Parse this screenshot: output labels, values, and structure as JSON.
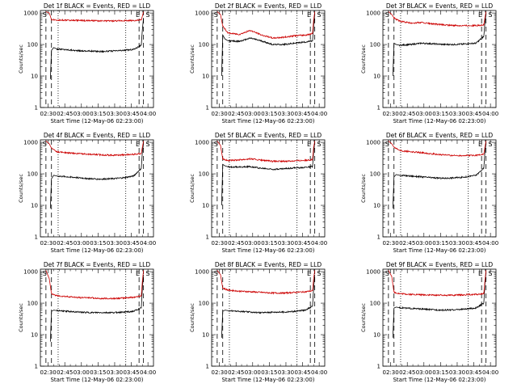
{
  "colors": {
    "events": "#000000",
    "lld": "#cc0000",
    "axis": "#000000",
    "background": "#ffffff"
  },
  "common": {
    "ylabel": "Counts/sec",
    "xlabel": "Start Time (12-May-06 02:23:00)",
    "xticks": [
      "02:30",
      "02:45",
      "03:00",
      "03:15",
      "03:30",
      "03:45",
      "04:00"
    ],
    "yticks": [
      "1",
      "10",
      "100",
      "1000"
    ],
    "marks": {
      "start": "S",
      "end": "E"
    }
  },
  "chart_data": [
    {
      "type": "line",
      "title": "Det 1f BLACK = Events, RED = LLD",
      "xlabel": "Start Time (12-May-06 02:23:00)",
      "ylabel": "Counts/sec",
      "yscale": "log",
      "ylim": [
        1,
        1200
      ],
      "xlim_minutes": [
        0,
        102
      ],
      "series": [
        {
          "name": "Events",
          "color": "#000000",
          "x": [
            9,
            10,
            12,
            15,
            25,
            35,
            45,
            55,
            65,
            75,
            84,
            91,
            92,
            93
          ],
          "y": [
            8,
            65,
            80,
            72,
            68,
            63,
            62,
            60,
            62,
            65,
            70,
            95,
            300,
            700
          ]
        },
        {
          "name": "LLD",
          "color": "#cc0000",
          "x": [
            5,
            8,
            10,
            15,
            25,
            35,
            45,
            55,
            65,
            75,
            85,
            91,
            92,
            93
          ],
          "y": [
            1100,
            1000,
            620,
            600,
            590,
            580,
            570,
            560,
            560,
            570,
            580,
            600,
            800,
            1100
          ]
        }
      ],
      "vlines_dashed_minutes": [
        5,
        10,
        89,
        93
      ],
      "vlines_dotted_minutes": [
        16,
        77
      ],
      "labels": [
        "S",
        "E",
        "S"
      ]
    },
    {
      "type": "line",
      "title": "Det 2f BLACK = Events, RED = LLD",
      "xlabel": "Start Time (12-May-06 02:23:00)",
      "ylabel": "Counts/sec",
      "yscale": "log",
      "ylim": [
        1,
        1200
      ],
      "xlim_minutes": [
        0,
        102
      ],
      "series": [
        {
          "name": "Events",
          "color": "#000000",
          "x": [
            9,
            10,
            12,
            15,
            25,
            35,
            45,
            55,
            65,
            75,
            84,
            91,
            92,
            93
          ],
          "y": [
            10,
            200,
            150,
            130,
            125,
            160,
            130,
            100,
            100,
            110,
            120,
            130,
            400,
            900
          ]
        },
        {
          "name": "LLD",
          "color": "#cc0000",
          "x": [
            5,
            8,
            10,
            15,
            25,
            35,
            45,
            55,
            65,
            75,
            85,
            91,
            92,
            93
          ],
          "y": [
            1100,
            900,
            380,
            230,
            210,
            280,
            200,
            160,
            170,
            190,
            200,
            220,
            600,
            1100
          ]
        }
      ],
      "vlines_dashed_minutes": [
        5,
        10,
        89,
        93
      ],
      "vlines_dotted_minutes": [
        16,
        77
      ],
      "labels": [
        "S",
        "E",
        "S"
      ]
    },
    {
      "type": "line",
      "title": "Det 3f BLACK = Events, RED = LLD",
      "xlabel": "Start Time (12-May-06 02:23:00)",
      "ylabel": "Counts/sec",
      "yscale": "log",
      "ylim": [
        1,
        1200
      ],
      "xlim_minutes": [
        0,
        102
      ],
      "series": [
        {
          "name": "Events",
          "color": "#000000",
          "x": [
            9,
            10,
            12,
            15,
            25,
            35,
            45,
            55,
            65,
            75,
            84,
            91,
            92,
            93
          ],
          "y": [
            10,
            110,
            100,
            95,
            100,
            110,
            105,
            100,
            100,
            105,
            110,
            180,
            500,
            900
          ]
        },
        {
          "name": "LLD",
          "color": "#cc0000",
          "x": [
            5,
            8,
            10,
            15,
            25,
            35,
            45,
            55,
            65,
            75,
            85,
            91,
            92,
            93
          ],
          "y": [
            1100,
            900,
            700,
            550,
            480,
            500,
            450,
            420,
            400,
            400,
            400,
            420,
            700,
            1100
          ]
        }
      ],
      "vlines_dashed_minutes": [
        5,
        10,
        89,
        93
      ],
      "vlines_dotted_minutes": [
        16,
        77
      ],
      "labels": [
        "S",
        "E",
        "S"
      ]
    },
    {
      "type": "line",
      "title": "Det 4f BLACK = Events, RED = LLD",
      "xlabel": "Start Time (12-May-06 02:23:00)",
      "ylabel": "Counts/sec",
      "yscale": "log",
      "ylim": [
        1,
        1200
      ],
      "xlim_minutes": [
        0,
        102
      ],
      "series": [
        {
          "name": "Events",
          "color": "#000000",
          "x": [
            9,
            10,
            12,
            15,
            25,
            35,
            45,
            55,
            65,
            75,
            84,
            91,
            92,
            93
          ],
          "y": [
            8,
            70,
            90,
            85,
            80,
            75,
            70,
            68,
            70,
            75,
            85,
            150,
            500,
            900
          ]
        },
        {
          "name": "LLD",
          "color": "#cc0000",
          "x": [
            5,
            8,
            10,
            15,
            25,
            35,
            45,
            55,
            65,
            75,
            85,
            91,
            92,
            93
          ],
          "y": [
            1100,
            900,
            650,
            500,
            460,
            440,
            420,
            400,
            390,
            400,
            420,
            450,
            700,
            1100
          ]
        }
      ],
      "vlines_dashed_minutes": [
        5,
        10,
        89,
        93
      ],
      "vlines_dotted_minutes": [
        16,
        77
      ],
      "labels": [
        "S",
        "E",
        "S"
      ]
    },
    {
      "type": "line",
      "title": "Det 5f BLACK = Events, RED = LLD",
      "xlabel": "Start Time (12-May-06 02:23:00)",
      "ylabel": "Counts/sec",
      "yscale": "log",
      "ylim": [
        1,
        1200
      ],
      "xlim_minutes": [
        0,
        102
      ],
      "series": [
        {
          "name": "Events",
          "color": "#000000",
          "x": [
            9,
            10,
            12,
            15,
            25,
            35,
            45,
            55,
            65,
            75,
            84,
            91,
            92,
            93
          ],
          "y": [
            10,
            200,
            180,
            165,
            165,
            170,
            150,
            140,
            145,
            155,
            160,
            170,
            500,
            1000
          ]
        },
        {
          "name": "LLD",
          "color": "#cc0000",
          "x": [
            5,
            8,
            10,
            15,
            25,
            35,
            45,
            55,
            65,
            75,
            85,
            91,
            92,
            93
          ],
          "y": [
            1100,
            800,
            300,
            260,
            280,
            300,
            270,
            250,
            250,
            260,
            270,
            280,
            700,
            1100
          ]
        }
      ],
      "vlines_dashed_minutes": [
        5,
        10,
        89,
        93
      ],
      "vlines_dotted_minutes": [
        16,
        77
      ],
      "labels": [
        "S",
        "E",
        "S"
      ]
    },
    {
      "type": "line",
      "title": "Det 6f BLACK = Events, RED = LLD",
      "xlabel": "Start Time (12-May-06 02:23:00)",
      "ylabel": "Counts/sec",
      "yscale": "log",
      "ylim": [
        1,
        1200
      ],
      "xlim_minutes": [
        0,
        102
      ],
      "series": [
        {
          "name": "Events",
          "color": "#000000",
          "x": [
            9,
            10,
            12,
            15,
            25,
            35,
            45,
            55,
            65,
            75,
            84,
            91,
            92,
            93
          ],
          "y": [
            8,
            80,
            95,
            90,
            85,
            80,
            75,
            72,
            75,
            80,
            90,
            150,
            500,
            900
          ]
        },
        {
          "name": "LLD",
          "color": "#cc0000",
          "x": [
            5,
            8,
            10,
            15,
            25,
            35,
            45,
            55,
            65,
            75,
            85,
            91,
            92,
            93
          ],
          "y": [
            1100,
            900,
            700,
            550,
            500,
            470,
            430,
            400,
            380,
            380,
            390,
            420,
            700,
            1100
          ]
        }
      ],
      "vlines_dashed_minutes": [
        5,
        10,
        89,
        93
      ],
      "vlines_dotted_minutes": [
        16,
        77
      ],
      "labels": [
        "S",
        "E",
        "S"
      ]
    },
    {
      "type": "line",
      "title": "Det 7f BLACK = Events, RED = LLD",
      "xlabel": "Start Time (12-May-06 02:23:00)",
      "ylabel": "Counts/sec",
      "yscale": "log",
      "ylim": [
        1,
        1200
      ],
      "xlim_minutes": [
        0,
        102
      ],
      "series": [
        {
          "name": "Events",
          "color": "#000000",
          "x": [
            9,
            10,
            12,
            15,
            25,
            35,
            45,
            55,
            65,
            75,
            84,
            91,
            92,
            93
          ],
          "y": [
            6,
            55,
            60,
            58,
            55,
            52,
            50,
            50,
            50,
            52,
            55,
            70,
            300,
            800
          ]
        },
        {
          "name": "LLD",
          "color": "#cc0000",
          "x": [
            5,
            8,
            10,
            15,
            25,
            35,
            45,
            55,
            65,
            75,
            85,
            91,
            92,
            93
          ],
          "y": [
            1100,
            600,
            200,
            170,
            160,
            150,
            150,
            140,
            140,
            145,
            155,
            170,
            500,
            1100
          ]
        }
      ],
      "vlines_dashed_minutes": [
        5,
        10,
        89,
        93
      ],
      "vlines_dotted_minutes": [
        16,
        77
      ],
      "labels": [
        "S",
        "E",
        "S"
      ]
    },
    {
      "type": "line",
      "title": "Det 8f BLACK = Events, RED = LLD",
      "xlabel": "Start Time (12-May-06 02:23:00)",
      "ylabel": "Counts/sec",
      "yscale": "log",
      "ylim": [
        1,
        1200
      ],
      "xlim_minutes": [
        0,
        102
      ],
      "series": [
        {
          "name": "Events",
          "color": "#000000",
          "x": [
            9,
            10,
            12,
            15,
            25,
            35,
            45,
            55,
            65,
            75,
            84,
            91,
            92,
            93
          ],
          "y": [
            8,
            55,
            60,
            58,
            55,
            52,
            50,
            52,
            52,
            55,
            60,
            80,
            300,
            800
          ]
        },
        {
          "name": "LLD",
          "color": "#cc0000",
          "x": [
            5,
            8,
            10,
            15,
            25,
            35,
            45,
            55,
            65,
            75,
            85,
            91,
            92,
            93
          ],
          "y": [
            1100,
            800,
            300,
            260,
            240,
            230,
            220,
            210,
            210,
            220,
            230,
            250,
            600,
            1100
          ]
        }
      ],
      "vlines_dashed_minutes": [
        5,
        10,
        89,
        93
      ],
      "vlines_dotted_minutes": [
        16,
        77
      ],
      "labels": [
        "S",
        "E",
        "S"
      ]
    },
    {
      "type": "line",
      "title": "Det 9f BLACK = Events, RED = LLD",
      "xlabel": "Start Time (12-May-06 02:23:00)",
      "ylabel": "Counts/sec",
      "yscale": "log",
      "ylim": [
        1,
        1200
      ],
      "xlim_minutes": [
        0,
        102
      ],
      "series": [
        {
          "name": "Events",
          "color": "#000000",
          "x": [
            9,
            10,
            12,
            15,
            25,
            35,
            45,
            55,
            65,
            75,
            84,
            91,
            92,
            93
          ],
          "y": [
            8,
            70,
            75,
            72,
            68,
            65,
            62,
            60,
            62,
            65,
            70,
            100,
            400,
            900
          ]
        },
        {
          "name": "LLD",
          "color": "#cc0000",
          "x": [
            5,
            8,
            10,
            15,
            25,
            35,
            45,
            55,
            65,
            75,
            85,
            91,
            92,
            93
          ],
          "y": [
            1100,
            700,
            220,
            200,
            190,
            185,
            180,
            180,
            180,
            185,
            190,
            200,
            500,
            1100
          ]
        }
      ],
      "vlines_dashed_minutes": [
        5,
        10,
        89,
        93
      ],
      "vlines_dotted_minutes": [
        16,
        77
      ],
      "labels": [
        "S",
        "E",
        "S"
      ]
    }
  ]
}
